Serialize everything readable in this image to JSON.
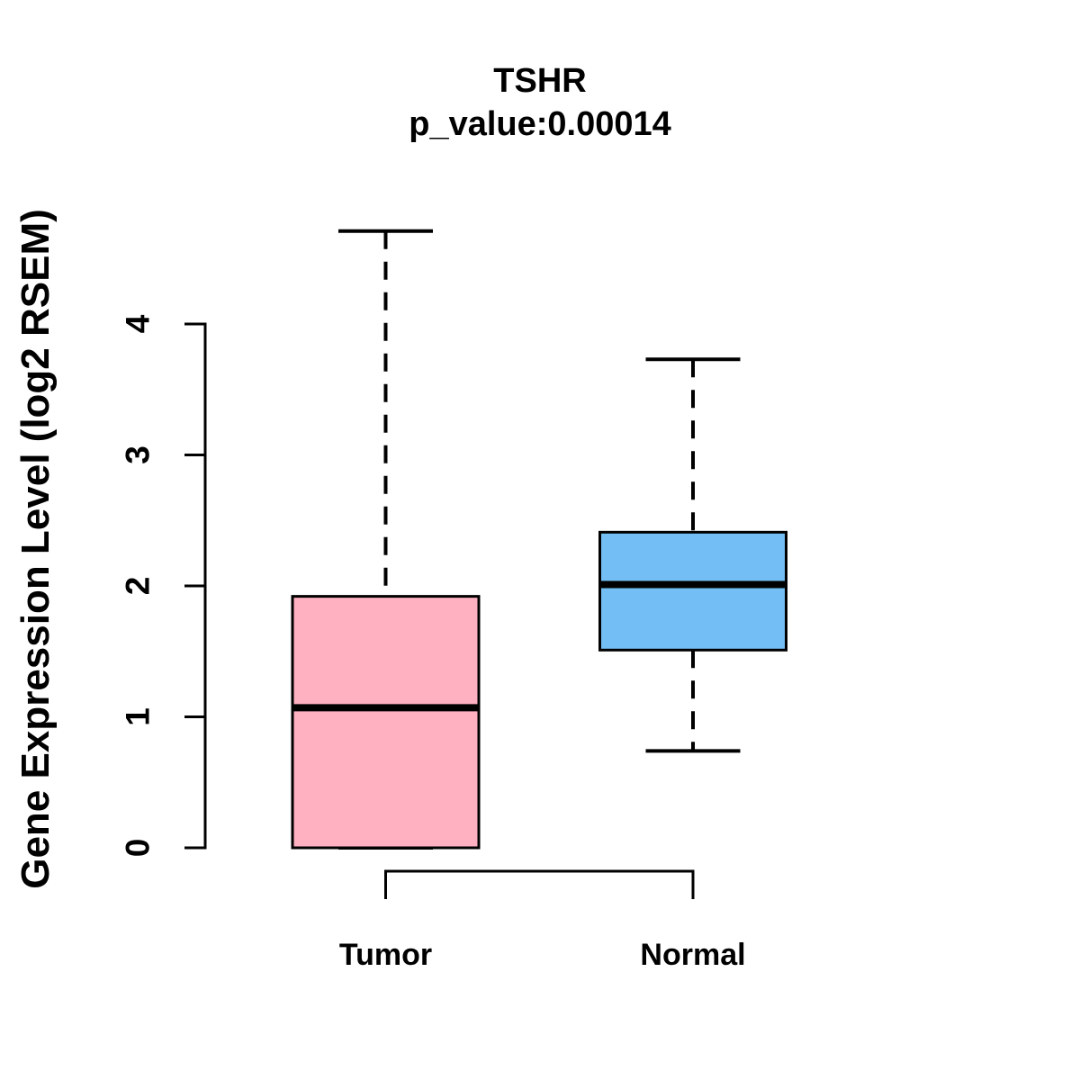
{
  "chart_data": {
    "type": "boxplot",
    "title": "TSHR",
    "subtitle": "p_value:0.00014",
    "p_value": 0.00014,
    "ylabel": "Gene Expression Level (log2 RSEM)",
    "xlabel": "",
    "yticks": [
      0,
      1,
      2,
      3,
      4
    ],
    "ylim": [
      0,
      4.8
    ],
    "grid": false,
    "legend": false,
    "line_color": "#000000",
    "background_color": "#ffffff",
    "whisker_style": "dashed",
    "categories": [
      "Tumor",
      "Normal"
    ],
    "groups": [
      {
        "label": "Tumor",
        "color": "#FFB0C1",
        "min": 0.0,
        "q1": 0.0,
        "median": 1.07,
        "q3": 1.92,
        "max": 4.71
      },
      {
        "label": "Normal",
        "color": "#73BFF5",
        "min": 0.74,
        "q1": 1.51,
        "median": 2.01,
        "q3": 2.41,
        "max": 3.73
      }
    ],
    "comparison_bracket": {
      "between": [
        "Tumor",
        "Normal"
      ]
    }
  }
}
